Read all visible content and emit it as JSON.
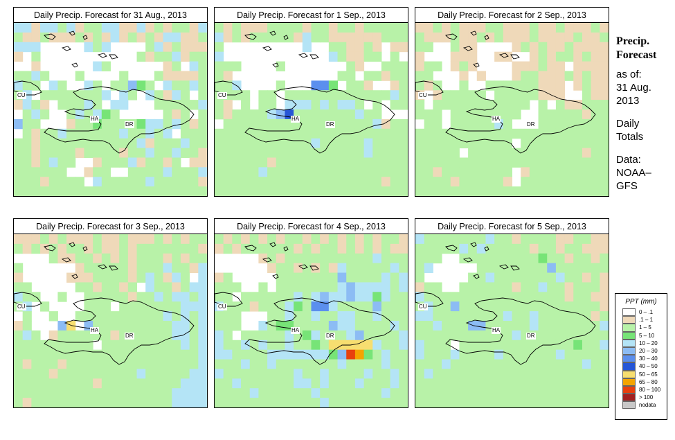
{
  "panels": [
    {
      "title": "Daily Precip. Forecast for  31 Aug., 2013"
    },
    {
      "title": "Daily Precip. Forecast for  1 Sep., 2013"
    },
    {
      "title": "Daily Precip. Forecast for  2 Sep., 2013"
    },
    {
      "title": "Daily Precip. Forecast for  3 Sep., 2013"
    },
    {
      "title": "Daily Precip. Forecast for  4 Sep., 2013"
    },
    {
      "title": "Daily Precip. Forecast for  5 Sep., 2013"
    }
  ],
  "map_labels": {
    "cuba": "CU",
    "haiti": "HA",
    "dominican_republic": "DR"
  },
  "sidebar": {
    "title_line1": "Precip.",
    "title_line2": "Forecast",
    "asof_label": "as of:",
    "asof_date_line1": "31 Aug.",
    "asof_date_line2": "2013",
    "totals_line1": "Daily",
    "totals_line2": "Totals",
    "data_line1": "Data:",
    "data_line2": "NOAA–",
    "data_line3": "GFS"
  },
  "legend": {
    "title": "PPT (mm)",
    "items": [
      {
        "label": "0 – .1",
        "color": "#ffffff"
      },
      {
        "label": ".1 – 1",
        "color": "#efd9b9"
      },
      {
        "label": "1 – 5",
        "color": "#b8f2a8"
      },
      {
        "label": "5 – 10",
        "color": "#77e477"
      },
      {
        "label": "10 – 20",
        "color": "#b4e4f6"
      },
      {
        "label": "20 – 30",
        "color": "#8cbcf4"
      },
      {
        "label": "30 – 40",
        "color": "#5b8fee"
      },
      {
        "label": "40 – 50",
        "color": "#2656d6"
      },
      {
        "label": "50 – 65",
        "color": "#f7de70"
      },
      {
        "label": "65 – 80",
        "color": "#f4a400"
      },
      {
        "label": "80 – 100",
        "color": "#e8400e"
      },
      {
        "label": "> 100",
        "color": "#a32020"
      },
      {
        "label": "nodata",
        "color": "#c8c8c8"
      }
    ]
  },
  "grids": [
    [
      "cctccbctbbccttctbtbbtc",
      "bttbtttbtbtctbtbtccttb",
      "cccwwwwwcbcwwwwbctbttt",
      "tdbwwwwwwwwwwwbtbbctbb",
      "ddtwwwwwwcbwdwwwwtbwcb",
      "bbcbwwwbwwwwbwwwbttttb",
      "cbbwcbwdcbwbbfgbwcbbcb",
      "bcdbbbbbbbcwcbwcbtcbwb",
      "tcbtwbbbcbwccwwwbbbbbc",
      "wbcbwwbcbcgbwwwwwbtbwb",
      "fbbwwwtbbgbbbbgccbcbtb",
      "wbtbbcbbbbbbcbbcbcwbbb",
      "bbtbbbbbbbbbbbctbbbcbb",
      "bbtbbbbtbbbbtbbcbbcbbt",
      "bbtbcbbwwtbbbctbbtbwtt",
      "bbbbbbwwtbbwwbbbbcbbbc",
      "bbbtbbbbwcbbbbbcbbbbbt",
      "bbbbbbbbbbbbbbbbbbbbbb"
    ],
    [
      "btbtttbbbbtbbtbbtbbbbb",
      "ctbtbbbbbtcbbttttttbbb",
      "bwwwwwwwwwcwwbbttbtwtt",
      "cwwwwwwwwwwwwcbttbbwbw",
      "bbbwwwwbwwwwwwwbtwwbbb",
      "btwwwwwwwwwwwwbbwbbtbb",
      "bbcwwwwbwwwhhgwbbtwwtb",
      "bbbbwbbwbbbbbbbbbbbbcb",
      "btwbwbbwcccbcbccbwbwbb",
      "btbbbbcfebbbbbbbcbbwww",
      "wbbbbbbbbbbbbbbbbbctbb",
      "bbbbbbbbbbbbbbbbbbbbbb",
      "bbbbbbbbbbbcbbbbbcbbbb",
      "bbbbbbbbbbbbbbbbbcbbbb",
      "bbbbbbtbbbbbbbbbbbbbbb",
      "bbbbbcbbbbbbbbbbbbbbbb",
      "bbbbbbbbbbbbbbbbbbbtbb",
      "bbbbbbbbbbbbbbbbbbbbbb"
    ],
    [
      "ttbtbtttbbtttbttbtttbt",
      "btttbttbtbtttbttttbttb",
      "bbwwbttwwwwtbtbttbtttt",
      "twwwtttwwttwwtbtbbtbtt",
      "tbbwtbtwwwwtttbttwtttt",
      "bbwwwtwtwwwtbbtttbtbtt",
      "btbwwbwwbbbbbbtttwtbtt",
      "twtbbbbbwbbbbbtttwwbtt",
      "bwbbbbbbbbbbbwbwbttbbb",
      "bbbwbbbbbbbbwwbbbbbtbb",
      "wbbwbbbbbcbwwwbbbbbbbb",
      "bbbbbbbbbbbbbbbbbbbbbb",
      "bbbbbbbbbbbwbbbbbbbbbb",
      "bbbbbwbbbbbbbbbbbbbtbb",
      "bbbbbbbbbbbbbbbbbbbbbb",
      "bbtbbbbbbbbwtbbbbbbbbb",
      "bbbbtbbbbbtwbbbbbbbbbb",
      "bbbbbbbbbbbbbbbbbbbbbb"
    ],
    [
      "tttbtbtttbttbtttbtbtbb",
      "btbtbtbbtbttbtbbbbbbbt",
      "wwwwbttbbtbtbtbbbtbtbb",
      "bwwwwwwtbbbbbtbbbcbbtc",
      "twwwwwtttbbbbtbcbtcbwc",
      "bbwwwwwbbtbbtbwcbbtbcc",
      "cbbwwbwwbbbbbtbbcbccbc",
      "bcwbwwwwbbbwbbbbbbbccc",
      "wbwwbwwbbbbbbbbbbcbcbc",
      "tbwwwfiwfbbbbbbbbbccbc",
      "bcbwtbbbbbbtbbbbbbccbc",
      "bbbbbbbbbwbbbbbbbbbcbc",
      "bbbbbbbbbbbbbbbbbbbbbc",
      "btbbbtbbbbbbbbbbbbbbbc",
      "bbbbtbbbbbbbbbcbbbbbcc",
      "bbbbbbbbbtbbbbbbbbbccc",
      "bbbbbbbbbbbbbbbbbbcccc",
      "btbbbbbbbbbbbbbbbbcccc"
    ],
    [
      "btbtbtbtbbtbtbtbtbtbbt",
      "tbtbbbbbbtbtbbtbtbtbtt",
      "wwwwwtbtbbbbbbbbbbcbbb",
      "wwwwwwtbbtbtbtcbbbbbcb",
      "tbwwwwwbbbbbbbfbbbbcbc",
      "bbbwwbwbbbbbbbcfccccbc",
      "bbwbbbbbbcbcfccfccgcbb",
      "cbbbtbbbcgbhhcbbbbfbbb",
      "bbbwwwbbcbbcbbccbbcbbb",
      "bbbwwcbggbbbbfccbbbbcb",
      "cbwbbbbbcbgcbbbcfbbbbc",
      "cbbcbcbbcbbgbiiiiicbbc",
      "ccbbbbcccccccgfkjgbcbb",
      "bbbcbbcbbbbbbbcbbbbcbb",
      "cbbbbbbbbcbbcbbbbcbbcb",
      "bbcbbbbbbccbcbbbcbbbcb",
      "bbbbcbbbbbbcbbbbbbbcbb",
      "bbbbbbbbbbbbcbbbbbbbbb"
    ],
    [
      "cbbbbbbbcbbtbbbbttbbtt",
      "bbbbbcbcbbbbbtbbtbbttt",
      "bbbwwbbbbbbbbbgbbtbbtb",
      "bcwwwwwbbbbbbbbfbbbbbb",
      "bwwwwwbbcbbbbbbbcbbtbt",
      "tbbwwbbbbbbtbbcbbtbbbt",
      "cbbbbbbbbbbbbbbbbtbbtt",
      "bcbbfbbbbbbbbbbbbbbbbt",
      "ccbbbbbbbbcbbcbbbbbbtb",
      "bbcbbbffbbbbbcbbbbbbbc",
      "bbbbbbbbbbbcbbbbbbbbbb",
      "cbbbwbbbbbbbbbbbbbgbbc",
      "cbbbcbbbbcbbbbbbcbbbbb",
      "bbbcbbbbbbbbbbbbbbbcbb",
      "bcbbbbbbbbbbbbbbbbbbbb",
      "bbbbbbbbbbbbbbbbbbbbbb",
      "bbbbbbbbbbbbbbbbbbbbbb",
      "bbbbbbbbbbbbbbbbbbbbbb"
    ]
  ]
}
